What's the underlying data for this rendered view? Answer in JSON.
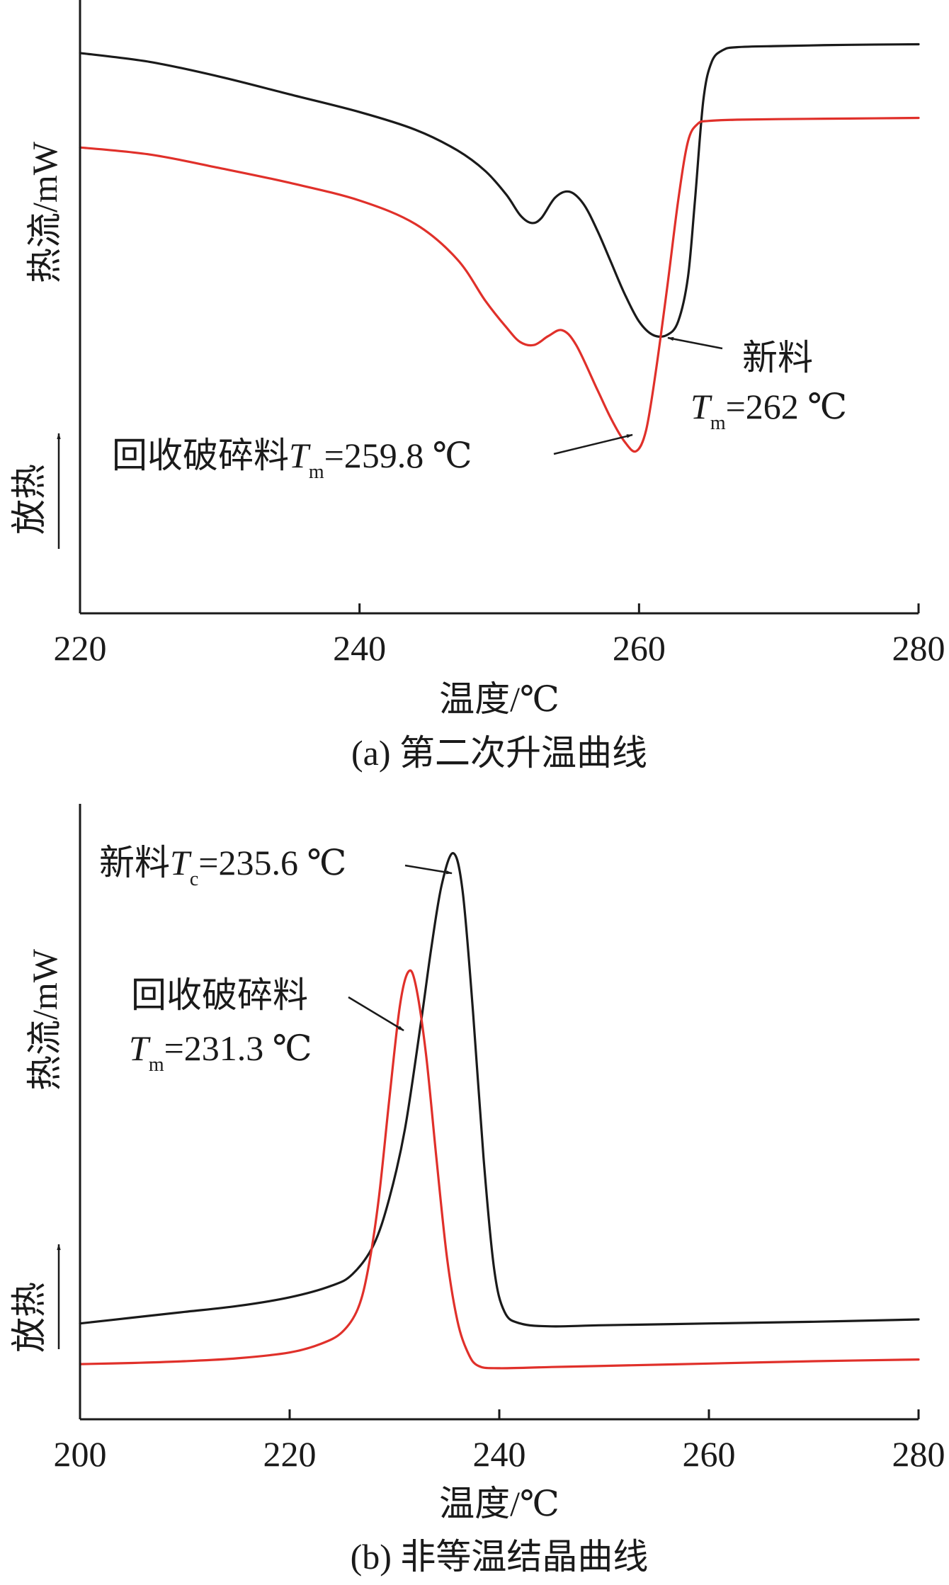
{
  "chart_data": [
    {
      "type": "line",
      "caption": "(a) 第二次升温曲线",
      "xlabel": "温度/℃",
      "ylabel": "热流/mW",
      "exo_label": "放热",
      "xlim": [
        220,
        280
      ],
      "x_ticks": [
        220,
        240,
        260,
        280
      ],
      "y_ticks": false,
      "colors": {
        "new": "#1a1a1a",
        "recycled": "#e0302a"
      },
      "series": [
        {
          "key": "new",
          "x": [
            220,
            225,
            230,
            235,
            240,
            244,
            247,
            249,
            250.5,
            251.5,
            252.3,
            253,
            254,
            255,
            256,
            257,
            258,
            259,
            260,
            261,
            262,
            262.8,
            263.5,
            264,
            264.6,
            265.2,
            266,
            267,
            270,
            275,
            280
          ],
          "y": [
            9.5,
            9.35,
            9.1,
            8.8,
            8.5,
            8.2,
            7.85,
            7.5,
            7.1,
            6.75,
            6.62,
            6.7,
            7.05,
            7.15,
            6.95,
            6.5,
            5.95,
            5.4,
            4.95,
            4.72,
            4.72,
            4.95,
            5.7,
            7.0,
            8.7,
            9.35,
            9.55,
            9.6,
            9.62,
            9.64,
            9.65
          ]
        },
        {
          "key": "recycled",
          "x": [
            220,
            225,
            230,
            235,
            240,
            244,
            247,
            249,
            250.5,
            251.5,
            252.5,
            253.5,
            254.5,
            255.5,
            257,
            258,
            259,
            259.8,
            260.5,
            261.2,
            262,
            262.8,
            263.5,
            264.2,
            265,
            267,
            270,
            275,
            280
          ],
          "y": [
            7.9,
            7.78,
            7.55,
            7.3,
            7.0,
            6.6,
            6.0,
            5.3,
            4.85,
            4.6,
            4.55,
            4.7,
            4.8,
            4.55,
            3.8,
            3.3,
            2.9,
            2.75,
            3.1,
            4.1,
            5.5,
            7.0,
            8.0,
            8.3,
            8.35,
            8.37,
            8.38,
            8.39,
            8.4
          ]
        }
      ],
      "ylim": [
        0,
        10.4
      ],
      "annotations": [
        {
          "text": "新料",
          "sub_prefix": "T",
          "sub": "m",
          "value_text": "=262 ℃",
          "points_to_x": 262.0,
          "points_to_y": 4.72
        },
        {
          "text": "回收破碎料",
          "sub_prefix": "T",
          "sub": "m",
          "value_text": "=259.8 ℃",
          "points_to_x": 259.8,
          "points_to_y": 2.75
        }
      ]
    },
    {
      "type": "line",
      "caption": "(b) 非等温结晶曲线",
      "xlabel": "温度/℃",
      "ylabel": "热流/mW",
      "exo_label": "放热",
      "xlim": [
        200,
        280
      ],
      "x_ticks": [
        200,
        220,
        240,
        260,
        280
      ],
      "y_ticks": false,
      "colors": {
        "new": "#1a1a1a",
        "recycled": "#e0302a"
      },
      "series": [
        {
          "key": "new",
          "x": [
            200,
            205,
            210,
            215,
            220,
            224,
            226,
            228,
            229.5,
            231,
            232.5,
            233.5,
            234.5,
            235.6,
            236.5,
            237.5,
            238.5,
            239.5,
            240.5,
            242,
            245,
            250,
            260,
            270,
            280
          ],
          "y": [
            1.65,
            1.75,
            1.85,
            1.95,
            2.1,
            2.3,
            2.5,
            3.0,
            3.8,
            5.0,
            6.8,
            8.1,
            9.2,
            9.75,
            9.1,
            7.0,
            4.5,
            2.6,
            1.85,
            1.65,
            1.6,
            1.62,
            1.65,
            1.68,
            1.72
          ]
        },
        {
          "key": "recycled",
          "x": [
            200,
            205,
            210,
            215,
            220,
            223,
            225,
            226.5,
            227.5,
            228.5,
            229.5,
            230.5,
            231.3,
            232,
            233,
            234,
            235,
            236,
            237,
            238,
            240,
            245,
            250,
            260,
            270,
            280
          ],
          "y": [
            0.95,
            0.97,
            1.0,
            1.05,
            1.15,
            1.3,
            1.5,
            1.9,
            2.6,
            3.8,
            5.5,
            7.1,
            7.7,
            7.5,
            6.3,
            4.5,
            2.8,
            1.7,
            1.15,
            0.92,
            0.88,
            0.9,
            0.92,
            0.96,
            1.0,
            1.03
          ]
        }
      ],
      "ylim": [
        0,
        10.6
      ],
      "annotations": [
        {
          "text": "新料",
          "sub_prefix": "T",
          "sub": "c",
          "value_text": "=235.6 ℃",
          "points_to_x": 235.6,
          "points_to_y": 9.75
        },
        {
          "text": "回收破碎料",
          "sub_prefix": "T",
          "sub": "m",
          "value_text": "=231.3 ℃",
          "points_to_x": 231.3,
          "points_to_y": 7.7
        }
      ]
    }
  ]
}
